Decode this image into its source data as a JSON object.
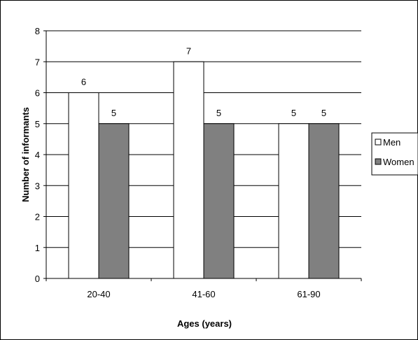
{
  "chart_data": {
    "type": "bar",
    "categories": [
      "20-40",
      "41-60",
      "61-90"
    ],
    "series": [
      {
        "name": "Men",
        "values": [
          6,
          7,
          5
        ],
        "color": "#ffffff"
      },
      {
        "name": "Women",
        "values": [
          5,
          5,
          5
        ],
        "color": "#808080"
      }
    ],
    "xlabel": "Ages (years)",
    "ylabel": "Number of informants",
    "ylim": [
      0,
      8
    ],
    "yticks": [
      0,
      1,
      2,
      3,
      4,
      5,
      6,
      7,
      8
    ],
    "grid": true,
    "legend_position": "right",
    "data_labels": true
  }
}
